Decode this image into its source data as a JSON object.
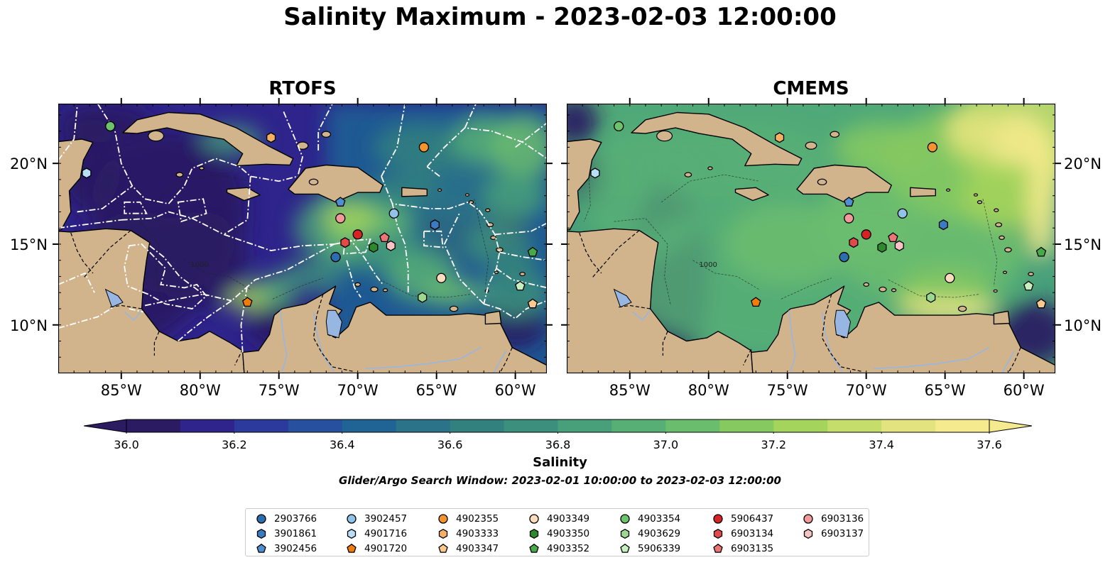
{
  "title": "Salinity Maximum - 2023-02-03 12:00:00",
  "panels": [
    {
      "title": "RTOFS"
    },
    {
      "title": "CMEMS"
    }
  ],
  "axes": {
    "lon_ticks": [
      "85°W",
      "80°W",
      "75°W",
      "70°W",
      "65°W",
      "60°W"
    ],
    "lat_ticks": [
      "20°N",
      "15°N",
      "10°N"
    ],
    "lon_range": [
      -89,
      -58
    ],
    "lat_range": [
      7,
      23.7
    ]
  },
  "colorbar": {
    "label": "Salinity",
    "ticks": [
      "36.0",
      "36.2",
      "36.4",
      "36.6",
      "36.8",
      "37.0",
      "37.2",
      "37.4",
      "37.6"
    ],
    "range": [
      36.0,
      37.6
    ],
    "extend": "both",
    "colormap": [
      "#2a1b63",
      "#2e248b",
      "#2c3a9e",
      "#27509f",
      "#1f6495",
      "#2a7388",
      "#33817f",
      "#3d8f7d",
      "#48a07a",
      "#57af76",
      "#6bbd6e",
      "#86c961",
      "#a4d45b",
      "#c5dd6a",
      "#e3e37f",
      "#f6ea8e"
    ]
  },
  "isobath_label": "1000",
  "search_window": "Glider/Argo Search Window: 2023-02-01 10:00:00 to 2023-02-03 12:00:00",
  "colors": {
    "land": "#d2b48c",
    "lakes": "#97b6e1",
    "eez_lines": "#ffffff",
    "coast": "#000000"
  },
  "legend": [
    {
      "id": "2903766",
      "color": "#2c6db0",
      "shape": "circle"
    },
    {
      "id": "3901861",
      "color": "#3b7bc2",
      "shape": "hexagon"
    },
    {
      "id": "3902456",
      "color": "#4f8fd0",
      "shape": "pentagon"
    },
    {
      "id": "3902457",
      "color": "#90c3ea",
      "shape": "circle"
    },
    {
      "id": "4901716",
      "color": "#b9dff6",
      "shape": "hexagon"
    },
    {
      "id": "4901720",
      "color": "#f07c0c",
      "shape": "pentagon"
    },
    {
      "id": "4902355",
      "color": "#f4942e",
      "shape": "circle"
    },
    {
      "id": "4903333",
      "color": "#f7b062",
      "shape": "hexagon"
    },
    {
      "id": "4903347",
      "color": "#f9c98f",
      "shape": "pentagon"
    },
    {
      "id": "4903349",
      "color": "#fbdcbc",
      "shape": "circle"
    },
    {
      "id": "4903350",
      "color": "#2c8a2c",
      "shape": "hexagon"
    },
    {
      "id": "4903352",
      "color": "#46a94a",
      "shape": "pentagon"
    },
    {
      "id": "4903354",
      "color": "#6cc36b",
      "shape": "circle"
    },
    {
      "id": "4903629",
      "color": "#9ad98f",
      "shape": "hexagon"
    },
    {
      "id": "5906339",
      "color": "#c6efc0",
      "shape": "pentagon"
    },
    {
      "id": "5906437",
      "color": "#d62424",
      "shape": "circle"
    },
    {
      "id": "6903134",
      "color": "#e24a4a",
      "shape": "hexagon"
    },
    {
      "id": "6903135",
      "color": "#ec7474",
      "shape": "pentagon"
    },
    {
      "id": "6903136",
      "color": "#f29a9a",
      "shape": "circle"
    },
    {
      "id": "6903137",
      "color": "#f8c3c3",
      "shape": "hexagon"
    }
  ],
  "floats": [
    {
      "id": "2903766",
      "lon": -71.4,
      "lat": 14.2
    },
    {
      "id": "3901861",
      "lon": -65.1,
      "lat": 16.2
    },
    {
      "id": "3902456",
      "lon": -71.1,
      "lat": 17.6
    },
    {
      "id": "3902457",
      "lon": -67.7,
      "lat": 16.9
    },
    {
      "id": "4901716",
      "lon": -87.2,
      "lat": 19.4
    },
    {
      "id": "4901720",
      "lon": -77.0,
      "lat": 11.4
    },
    {
      "id": "4902355",
      "lon": -65.8,
      "lat": 21.0
    },
    {
      "id": "4903333",
      "lon": -75.5,
      "lat": 21.6
    },
    {
      "id": "4903347",
      "lon": -58.9,
      "lat": 11.3
    },
    {
      "id": "4903349",
      "lon": -64.7,
      "lat": 12.9
    },
    {
      "id": "4903350",
      "lon": -69.0,
      "lat": 14.8
    },
    {
      "id": "4903352",
      "lon": -58.9,
      "lat": 14.5
    },
    {
      "id": "4903354",
      "lon": -85.7,
      "lat": 22.3
    },
    {
      "id": "4903629",
      "lon": -65.9,
      "lat": 11.7
    },
    {
      "id": "5906339",
      "lon": -59.7,
      "lat": 12.4
    },
    {
      "id": "5906437",
      "lon": -70.0,
      "lat": 15.6
    },
    {
      "id": "6903134",
      "lon": -70.8,
      "lat": 15.1
    },
    {
      "id": "6903135",
      "lon": -68.3,
      "lat": 15.4
    },
    {
      "id": "6903136",
      "lon": -71.1,
      "lat": 16.6
    },
    {
      "id": "6903137",
      "lon": -67.9,
      "lat": 14.9
    }
  ]
}
